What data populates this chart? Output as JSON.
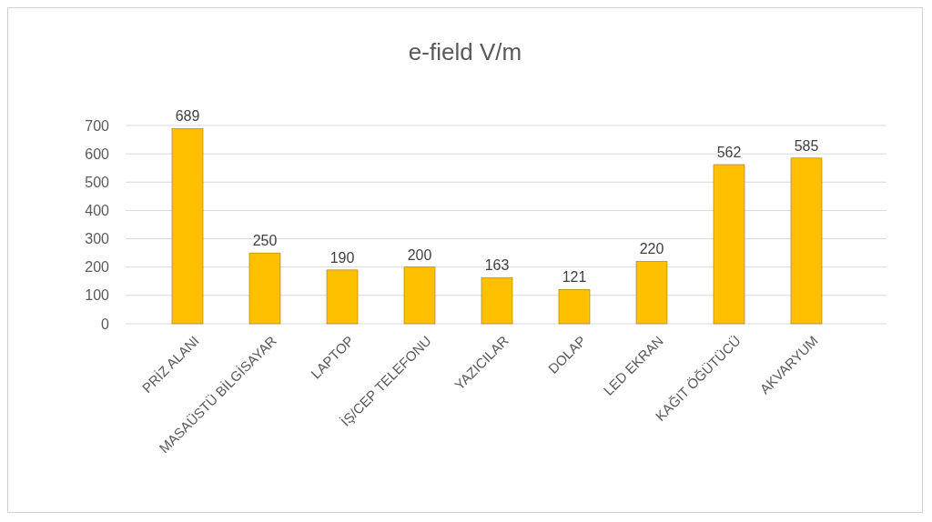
{
  "chart_data": {
    "type": "bar",
    "title": "e-field V/m",
    "categories": [
      "PRİZ ALANI",
      "MASAÜSTÜ BİLGİSAYAR",
      "LAPTOP",
      "İŞ/CEP TELEFONU",
      "YAZICILAR",
      "DOLAP",
      "LED EKRAN",
      "KAĞIT ÖĞÜTÜCÜ",
      "AKVARYUM"
    ],
    "values": [
      689,
      250,
      190,
      200,
      163,
      121,
      220,
      562,
      585
    ],
    "color": "#ffc000",
    "ylim": [
      0,
      700
    ],
    "yticks": [
      0,
      100,
      200,
      300,
      400,
      500,
      600,
      700
    ],
    "grid": "y",
    "data_labels": true
  }
}
